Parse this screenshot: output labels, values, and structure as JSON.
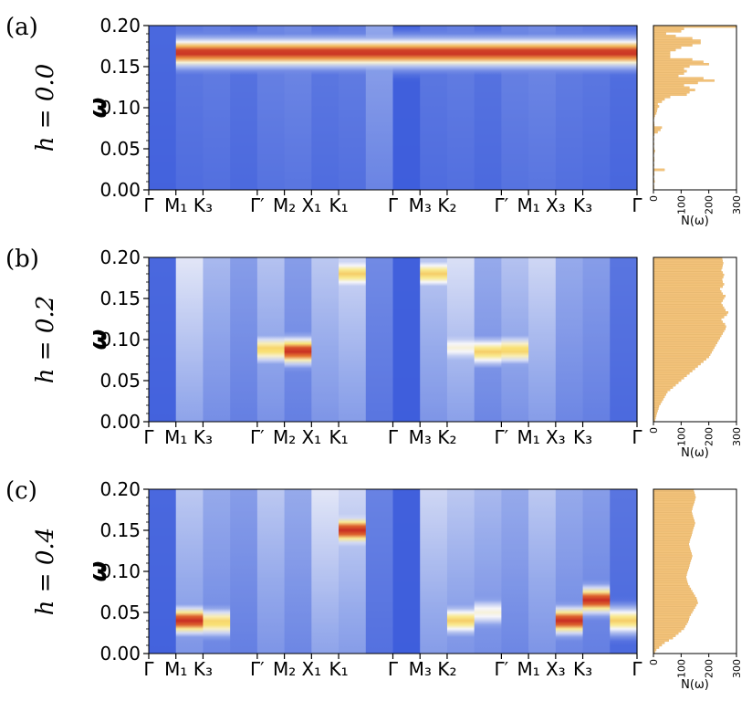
{
  "chart_data": [
    {
      "type": "heatmap",
      "panel_label": "(a)",
      "title": "h = 0.0",
      "ylabel": "ω",
      "ylim": [
        0,
        0.2
      ],
      "yticks": [
        "0.00",
        "0.05",
        "0.10",
        "0.15",
        "0.20"
      ],
      "xticks": [
        "Γ",
        "M₁",
        "K₃",
        "Γ′",
        "M₂",
        "X₁",
        "K₁",
        "Γ",
        "M₃",
        "K₂",
        "Γ′",
        "M₁",
        "X₃",
        "K₃",
        "Γ"
      ],
      "peaks": [
        {
          "column_range": [
            1,
            9
          ],
          "omega": 0.167,
          "intensity": "high"
        },
        {
          "column_range": [
            10,
            18
          ],
          "omega": 0.167,
          "intensity": "high"
        }
      ],
      "histogram": {
        "xlabel": "N(ω)",
        "xticks": [
          "0",
          "100",
          "200",
          "300"
        ],
        "xlim": [
          0,
          300
        ],
        "counts": [
          2,
          2,
          0,
          4,
          2,
          0,
          3,
          2,
          40,
          0,
          2,
          0,
          3,
          2,
          0,
          2,
          5,
          2,
          0,
          2,
          0,
          2,
          0,
          3,
          15,
          25,
          30,
          3,
          2,
          0,
          2,
          5,
          10,
          12,
          14,
          20,
          15,
          30,
          40,
          60,
          120,
          130,
          150,
          130,
          110,
          160,
          220,
          180,
          90,
          110,
          120,
          110,
          130,
          200,
          180,
          140,
          60,
          60,
          60,
          80,
          100,
          140,
          170,
          170,
          140,
          80,
          45,
          100,
          110,
          300
        ]
      }
    },
    {
      "type": "heatmap",
      "panel_label": "(b)",
      "title": "h = 0.2",
      "ylabel": "ω",
      "ylim": [
        0,
        0.2
      ],
      "yticks": [
        "0.00",
        "0.05",
        "0.10",
        "0.15",
        "0.20"
      ],
      "xticks": [
        "Γ",
        "M₁",
        "K₃",
        "Γ′",
        "M₂",
        "X₁",
        "K₁",
        "Γ",
        "M₃",
        "K₂",
        "Γ′",
        "M₁",
        "X₃",
        "K₃",
        "Γ"
      ],
      "peaks": [
        {
          "column": 4,
          "omega": 0.088,
          "intensity": "medium"
        },
        {
          "column": 5,
          "omega": 0.086,
          "intensity": "high"
        },
        {
          "column": 7,
          "omega": 0.18,
          "intensity": "medium"
        },
        {
          "column": 10,
          "omega": 0.18,
          "intensity": "medium"
        },
        {
          "column": 11,
          "omega": 0.09,
          "intensity": "low"
        },
        {
          "column": 12,
          "omega": 0.085,
          "intensity": "medium"
        },
        {
          "column": 13,
          "omega": 0.087,
          "intensity": "medium"
        }
      ],
      "histogram": {
        "xlabel": "N(ω)",
        "xticks": [
          "0",
          "100",
          "200",
          "300"
        ],
        "xlim": [
          0,
          300
        ],
        "counts": [
          5,
          8,
          10,
          12,
          15,
          18,
          20,
          25,
          30,
          35,
          40,
          45,
          50,
          60,
          70,
          80,
          90,
          100,
          110,
          120,
          130,
          140,
          150,
          160,
          170,
          180,
          190,
          200,
          205,
          210,
          215,
          220,
          225,
          230,
          235,
          240,
          245,
          250,
          255,
          260,
          262,
          258,
          250,
          245,
          255,
          265,
          270,
          260,
          255,
          250,
          245,
          250,
          255,
          260,
          250,
          245,
          240,
          250,
          255,
          250,
          248,
          252,
          255,
          250,
          245,
          248,
          250,
          252,
          250,
          248
        ]
      }
    },
    {
      "type": "heatmap",
      "panel_label": "(c)",
      "title": "h = 0.4",
      "ylabel": "ω",
      "ylim": [
        0,
        0.2
      ],
      "yticks": [
        "0.00",
        "0.05",
        "0.10",
        "0.15",
        "0.20"
      ],
      "xticks": [
        "Γ",
        "M₁",
        "K₃",
        "Γ′",
        "M₂",
        "X₁",
        "K₁",
        "Γ",
        "M₃",
        "K₂",
        "Γ′",
        "M₁",
        "X₃",
        "K₃",
        "Γ"
      ],
      "peaks": [
        {
          "column": 1,
          "omega": 0.04,
          "intensity": "high"
        },
        {
          "column": 2,
          "omega": 0.038,
          "intensity": "medium"
        },
        {
          "column": 7,
          "omega": 0.15,
          "intensity": "high"
        },
        {
          "column": 11,
          "omega": 0.04,
          "intensity": "medium"
        },
        {
          "column": 12,
          "omega": 0.05,
          "intensity": "low"
        },
        {
          "column": 15,
          "omega": 0.04,
          "intensity": "high"
        },
        {
          "column": 16,
          "omega": 0.065,
          "intensity": "high"
        },
        {
          "column": 17,
          "omega": 0.04,
          "intensity": "medium"
        }
      ],
      "histogram": {
        "xlabel": "N(ω)",
        "xticks": [
          "0",
          "100",
          "200",
          "300"
        ],
        "xlim": [
          0,
          300
        ],
        "counts": [
          5,
          10,
          20,
          30,
          40,
          55,
          70,
          80,
          90,
          100,
          110,
          115,
          120,
          125,
          128,
          130,
          135,
          140,
          145,
          150,
          155,
          160,
          158,
          155,
          150,
          145,
          140,
          135,
          130,
          125,
          122,
          120,
          118,
          120,
          122,
          125,
          128,
          130,
          132,
          135,
          138,
          140,
          138,
          135,
          132,
          130,
          128,
          130,
          132,
          135,
          138,
          140,
          142,
          145,
          148,
          150,
          148,
          145,
          142,
          140,
          138,
          140,
          142,
          145,
          148,
          150,
          152,
          150,
          148,
          145
        ]
      }
    }
  ]
}
